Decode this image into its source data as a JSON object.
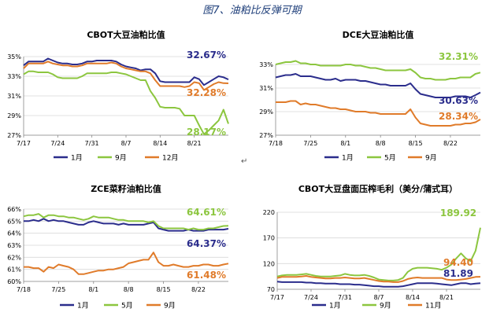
{
  "page": {
    "title": "图7、油粕比反弹可期",
    "mark": "↵"
  },
  "chart_data": [
    {
      "type": "line",
      "title": "CBOT大豆油粕比值",
      "x": [
        "7/17",
        "7/18",
        "7/19",
        "7/20",
        "7/21",
        "7/22",
        "7/23",
        "7/24",
        "7/25",
        "7/26",
        "7/27",
        "7/28",
        "7/29",
        "7/30",
        "7/31",
        "8/1",
        "8/2",
        "8/3",
        "8/4",
        "8/5",
        "8/6",
        "8/7",
        "8/8",
        "8/9",
        "8/10",
        "8/11",
        "8/12",
        "8/13",
        "8/14",
        "8/15",
        "8/16",
        "8/17",
        "8/18",
        "8/19",
        "8/20",
        "8/21",
        "8/22",
        "8/23",
        "8/24",
        "8/25",
        "8/26",
        "8/27",
        "8/28"
      ],
      "xticks": [
        "7/17",
        "7/24",
        "7/31",
        "8/7",
        "8/14",
        "8/21"
      ],
      "ylim": [
        27,
        35
      ],
      "yticks": [
        "27%",
        "29%",
        "31%",
        "33%",
        "35%"
      ],
      "series": [
        {
          "name": "1月",
          "color": "#2b2d8c",
          "values": [
            34.1,
            34.5,
            34.5,
            34.5,
            34.5,
            34.8,
            34.6,
            34.4,
            34.3,
            34.3,
            34.2,
            34.2,
            34.3,
            34.5,
            34.5,
            34.6,
            34.6,
            34.6,
            34.6,
            34.5,
            34.2,
            34.0,
            33.9,
            33.8,
            33.6,
            33.7,
            33.7,
            33.3,
            32.5,
            32.4,
            32.4,
            32.4,
            32.4,
            32.4,
            32.4,
            32.9,
            32.7,
            32.1,
            32.4,
            32.7,
            33.0,
            32.9,
            32.67
          ]
        },
        {
          "name": "9月",
          "color": "#8cc63f",
          "values": [
            33.2,
            33.5,
            33.5,
            33.4,
            33.4,
            33.4,
            33.2,
            32.9,
            32.8,
            32.8,
            32.8,
            32.8,
            33.0,
            33.3,
            33.3,
            33.3,
            33.3,
            33.3,
            33.4,
            33.4,
            33.3,
            33.2,
            33.0,
            32.8,
            32.6,
            32.6,
            31.5,
            30.8,
            29.9,
            29.8,
            29.8,
            29.8,
            29.7,
            29.0,
            29.0,
            29.0,
            28.0,
            27.1,
            27.5,
            28.0,
            28.5,
            29.6,
            28.17
          ]
        },
        {
          "name": "12月",
          "color": "#e07b2a",
          "values": [
            33.8,
            34.3,
            34.3,
            34.3,
            34.3,
            34.5,
            34.3,
            34.2,
            34.1,
            34.1,
            34.0,
            34.0,
            34.1,
            34.3,
            34.3,
            34.3,
            34.3,
            34.3,
            34.4,
            34.3,
            34.0,
            33.8,
            33.7,
            33.6,
            33.5,
            33.5,
            33.3,
            32.6,
            32.0,
            32.0,
            32.0,
            32.0,
            32.0,
            31.9,
            32.0,
            32.4,
            32.3,
            31.6,
            31.9,
            32.2,
            32.4,
            32.3,
            32.28
          ]
        }
      ],
      "labels": [
        {
          "text": "32.67%",
          "color": "#2b2d8c"
        },
        {
          "text": "32.28%",
          "color": "#e07b2a"
        },
        {
          "text": "28.17%",
          "color": "#8cc63f"
        }
      ],
      "legend": "bottom"
    },
    {
      "type": "line",
      "title": "DCE大豆油粕比值",
      "x": [
        "7/18",
        "7/19",
        "7/20",
        "7/21",
        "7/22",
        "7/23",
        "7/24",
        "7/25",
        "7/26",
        "7/27",
        "7/28",
        "7/29",
        "7/30",
        "7/31",
        "8/1",
        "8/2",
        "8/3",
        "8/4",
        "8/5",
        "8/6",
        "8/7",
        "8/8",
        "8/9",
        "8/10",
        "8/11",
        "8/12",
        "8/13",
        "8/14",
        "8/15",
        "8/16",
        "8/17",
        "8/18",
        "8/19",
        "8/20",
        "8/21",
        "8/22",
        "8/23",
        "8/24",
        "8/25",
        "8/26",
        "8/27",
        "8/28"
      ],
      "xticks": [
        "7/18",
        "7/25",
        "8/1",
        "8/8",
        "8/15",
        "8/22"
      ],
      "ylim": [
        27,
        33
      ],
      "yticks": [
        "27%",
        "29%",
        "31%",
        "33%"
      ],
      "series": [
        {
          "name": "1月",
          "color": "#2b2d8c",
          "values": [
            31.9,
            32.0,
            32.1,
            32.1,
            32.2,
            32.0,
            32.0,
            32.0,
            31.9,
            31.8,
            31.7,
            31.7,
            31.8,
            31.6,
            31.7,
            31.7,
            31.7,
            31.6,
            31.6,
            31.5,
            31.4,
            31.3,
            31.3,
            31.2,
            31.2,
            31.2,
            31.2,
            31.4,
            30.9,
            30.5,
            30.4,
            30.3,
            30.2,
            30.2,
            30.2,
            30.2,
            30.3,
            30.3,
            30.3,
            30.2,
            30.4,
            30.63
          ]
        },
        {
          "name": "5月",
          "color": "#8cc63f",
          "values": [
            33.0,
            33.1,
            33.2,
            33.2,
            33.3,
            33.1,
            33.1,
            33.0,
            33.0,
            32.9,
            32.9,
            32.9,
            32.9,
            32.9,
            33.0,
            33.0,
            32.9,
            32.9,
            32.8,
            32.7,
            32.7,
            32.6,
            32.5,
            32.5,
            32.5,
            32.5,
            32.5,
            32.6,
            32.3,
            31.9,
            31.8,
            31.8,
            31.7,
            31.7,
            31.7,
            31.8,
            31.8,
            31.9,
            31.9,
            31.9,
            32.2,
            32.31
          ]
        },
        {
          "name": "9月",
          "color": "#e07b2a",
          "values": [
            29.8,
            29.8,
            29.8,
            29.9,
            29.9,
            29.6,
            29.7,
            29.6,
            29.6,
            29.5,
            29.4,
            29.3,
            29.3,
            29.2,
            29.2,
            29.1,
            29.0,
            29.0,
            29.0,
            28.9,
            28.9,
            28.8,
            28.8,
            28.8,
            28.8,
            28.8,
            28.8,
            29.2,
            28.5,
            28.0,
            27.9,
            27.8,
            27.8,
            27.8,
            27.8,
            27.8,
            27.9,
            27.9,
            28.0,
            28.0,
            28.1,
            28.34
          ]
        }
      ],
      "labels": [
        {
          "text": "32.31%",
          "color": "#8cc63f"
        },
        {
          "text": "30.63%",
          "color": "#2b2d8c"
        },
        {
          "text": "28.34%",
          "color": "#e07b2a"
        }
      ],
      "legend": "bottom"
    },
    {
      "type": "line",
      "title": "ZCE菜籽油粕比值",
      "x": [
        "7/18",
        "7/19",
        "7/20",
        "7/21",
        "7/22",
        "7/23",
        "7/24",
        "7/25",
        "7/26",
        "7/27",
        "7/28",
        "7/29",
        "7/30",
        "7/31",
        "8/1",
        "8/2",
        "8/3",
        "8/4",
        "8/5",
        "8/6",
        "8/7",
        "8/8",
        "8/9",
        "8/10",
        "8/11",
        "8/12",
        "8/13",
        "8/14",
        "8/15",
        "8/16",
        "8/17",
        "8/18",
        "8/19",
        "8/20",
        "8/21",
        "8/22",
        "8/23",
        "8/24",
        "8/25",
        "8/26",
        "8/27",
        "8/28"
      ],
      "xticks": [
        "7/18",
        "7/25",
        "8/1",
        "8/8",
        "8/15",
        "8/22"
      ],
      "ylim": [
        60,
        66
      ],
      "yticks": [
        "60%",
        "61%",
        "62%",
        "63%",
        "64%",
        "65%",
        "66%"
      ],
      "series": [
        {
          "name": "1月",
          "color": "#2b2d8c",
          "values": [
            65.0,
            65.0,
            65.1,
            65.0,
            65.2,
            65.0,
            65.1,
            65.0,
            65.0,
            64.9,
            64.8,
            64.7,
            64.7,
            64.9,
            65.0,
            64.9,
            64.8,
            64.8,
            64.8,
            64.7,
            64.8,
            64.7,
            64.7,
            64.7,
            64.7,
            64.8,
            64.9,
            64.4,
            64.3,
            64.2,
            64.2,
            64.2,
            64.2,
            64.3,
            64.2,
            64.2,
            64.2,
            64.3,
            64.3,
            64.3,
            64.3,
            64.37
          ]
        },
        {
          "name": "5月",
          "color": "#8cc63f",
          "values": [
            65.4,
            65.5,
            65.5,
            65.6,
            65.3,
            65.5,
            65.5,
            65.4,
            65.4,
            65.3,
            65.3,
            65.2,
            65.1,
            65.2,
            65.4,
            65.3,
            65.3,
            65.3,
            65.2,
            65.1,
            65.1,
            65.0,
            65.0,
            65.0,
            65.0,
            64.9,
            65.0,
            64.6,
            64.4,
            64.4,
            64.4,
            64.4,
            64.4,
            64.3,
            64.4,
            64.3,
            64.3,
            64.4,
            64.4,
            64.5,
            64.6,
            64.61
          ]
        },
        {
          "name": "9月",
          "color": "#e07b2a",
          "values": [
            61.2,
            61.2,
            61.1,
            61.1,
            60.8,
            61.2,
            61.1,
            61.4,
            61.3,
            61.2,
            61.0,
            60.6,
            60.6,
            60.7,
            60.8,
            60.9,
            60.9,
            61.0,
            61.0,
            61.1,
            61.2,
            61.5,
            61.6,
            61.7,
            61.8,
            61.8,
            62.4,
            61.6,
            61.3,
            61.3,
            61.4,
            61.3,
            61.2,
            61.2,
            61.3,
            61.3,
            61.4,
            61.4,
            61.3,
            61.3,
            61.4,
            61.48
          ]
        }
      ],
      "labels": [
        {
          "text": "64.61%",
          "color": "#8cc63f"
        },
        {
          "text": "64.37%",
          "color": "#2b2d8c"
        },
        {
          "text": "61.48%",
          "color": "#e07b2a"
        }
      ],
      "legend": "bottom"
    },
    {
      "type": "line",
      "title": "CBOT大豆盘面压榨毛利（美分/蒲式耳）",
      "x": [
        "7/17",
        "7/18",
        "7/19",
        "7/20",
        "7/21",
        "7/22",
        "7/23",
        "7/24",
        "7/25",
        "7/26",
        "7/27",
        "7/28",
        "7/29",
        "7/30",
        "7/31",
        "8/1",
        "8/2",
        "8/3",
        "8/4",
        "8/5",
        "8/6",
        "8/7",
        "8/8",
        "8/9",
        "8/10",
        "8/11",
        "8/12",
        "8/13",
        "8/14",
        "8/15",
        "8/16",
        "8/17",
        "8/18",
        "8/19",
        "8/20",
        "8/21",
        "8/22",
        "8/23",
        "8/24",
        "8/25",
        "8/26",
        "8/27",
        "8/28"
      ],
      "xticks": [
        "7/17",
        "7/24",
        "7/31",
        "8/7",
        "8/14",
        "8/21"
      ],
      "ylim": [
        70,
        220
      ],
      "yticks": [
        "70",
        "120",
        "170",
        "220"
      ],
      "series": [
        {
          "name": "1月",
          "color": "#2b2d8c",
          "values": [
            85,
            84,
            84,
            84,
            84,
            84,
            83,
            83,
            82,
            82,
            81,
            81,
            81,
            80,
            80,
            80,
            79,
            79,
            78,
            77,
            76,
            76,
            75,
            75,
            75,
            75,
            76,
            78,
            80,
            82,
            82,
            82,
            82,
            81,
            80,
            79,
            78,
            80,
            82,
            82,
            80,
            81,
            81.89
          ]
        },
        {
          "name": "9月",
          "color": "#8cc63f",
          "values": [
            95,
            97,
            98,
            98,
            98,
            99,
            100,
            98,
            96,
            95,
            95,
            95,
            96,
            97,
            100,
            98,
            97,
            97,
            98,
            96,
            93,
            89,
            88,
            87,
            87,
            88,
            92,
            104,
            110,
            112,
            112,
            112,
            111,
            110,
            108,
            112,
            118,
            130,
            140,
            130,
            125,
            145,
            189.92
          ]
        },
        {
          "name": "11月",
          "color": "#e07b2a",
          "values": [
            92,
            94,
            94,
            94,
            94,
            95,
            96,
            94,
            93,
            92,
            91,
            91,
            92,
            92,
            93,
            92,
            91,
            91,
            92,
            90,
            88,
            86,
            85,
            85,
            84,
            84,
            86,
            90,
            92,
            93,
            92,
            92,
            92,
            92,
            92,
            89,
            88,
            88,
            89,
            90,
            92,
            94,
            94.4
          ]
        }
      ],
      "labels": [
        {
          "text": "189.92",
          "color": "#8cc63f"
        },
        {
          "text": "94.40",
          "color": "#e07b2a"
        },
        {
          "text": "81.89",
          "color": "#2b2d8c"
        }
      ],
      "legend": "bottom"
    }
  ]
}
